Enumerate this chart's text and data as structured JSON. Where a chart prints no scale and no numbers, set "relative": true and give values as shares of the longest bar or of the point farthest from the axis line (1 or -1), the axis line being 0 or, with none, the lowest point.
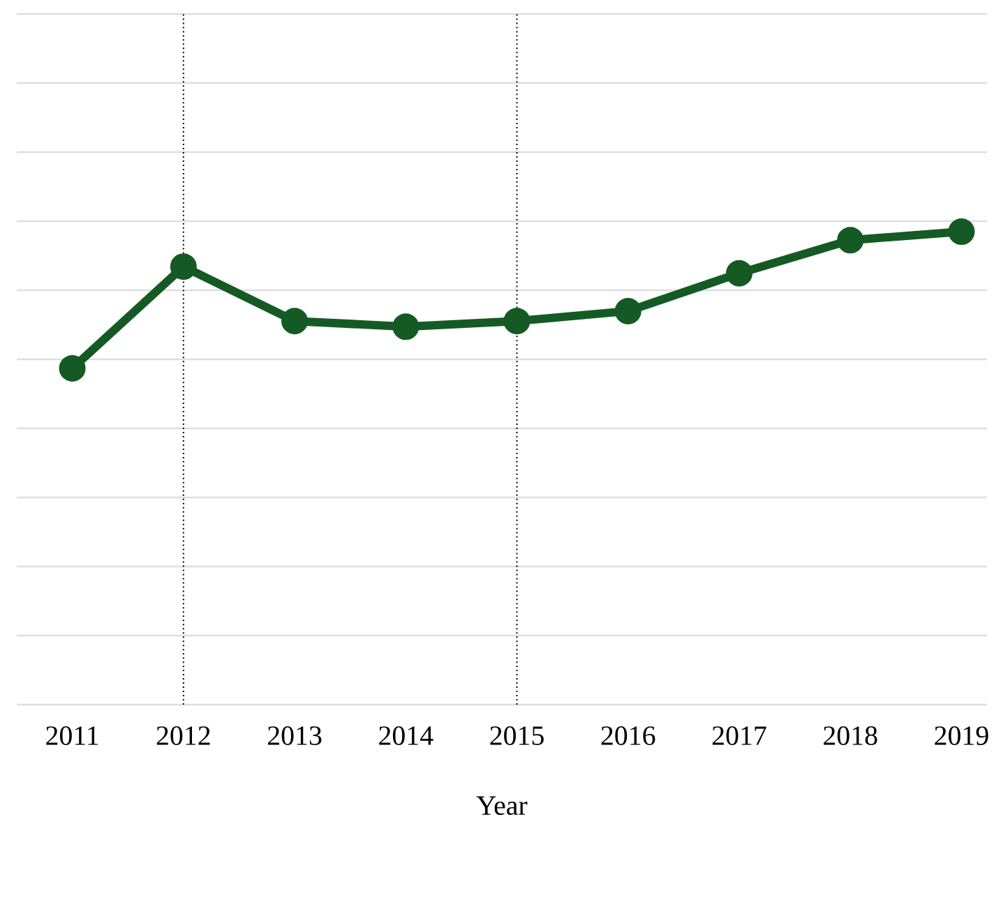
{
  "chart_data": {
    "type": "line",
    "xlabel": "Year",
    "categories": [
      "2011",
      "2012",
      "2013",
      "2014",
      "2015",
      "2016",
      "2017",
      "2018",
      "2019"
    ],
    "series": [
      {
        "color": "#155a24",
        "values": [
          0.711,
          0.926,
          0.811,
          0.799,
          0.811,
          0.832,
          0.912,
          0.982,
          1.0
        ]
      }
    ],
    "relative": true,
    "grid": "y",
    "marker": "circle",
    "line_style": "solid",
    "ref_lines": [
      {
        "axis": "x",
        "value": "2012",
        "line_style": "dotted",
        "color": "#000000"
      },
      {
        "axis": "x",
        "value": "2015",
        "line_style": "dotted",
        "color": "#000000"
      }
    ]
  }
}
